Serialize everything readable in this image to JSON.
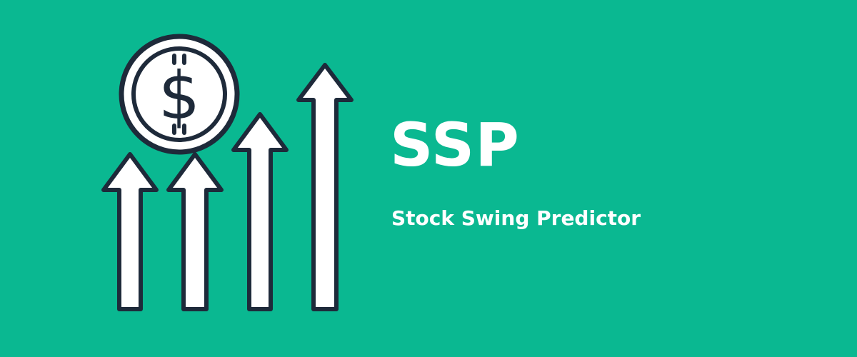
{
  "banner": {
    "background_color": "#0ab891",
    "title": "SSP",
    "subtitle": "Stock Swing Predictor",
    "text_color": "#ffffff",
    "logo": {
      "icon": "rising-arrows-with-dollar-coin",
      "coin_symbol": "$",
      "outline_color": "#1e2a3a",
      "fill_color": "#ffffff"
    }
  }
}
